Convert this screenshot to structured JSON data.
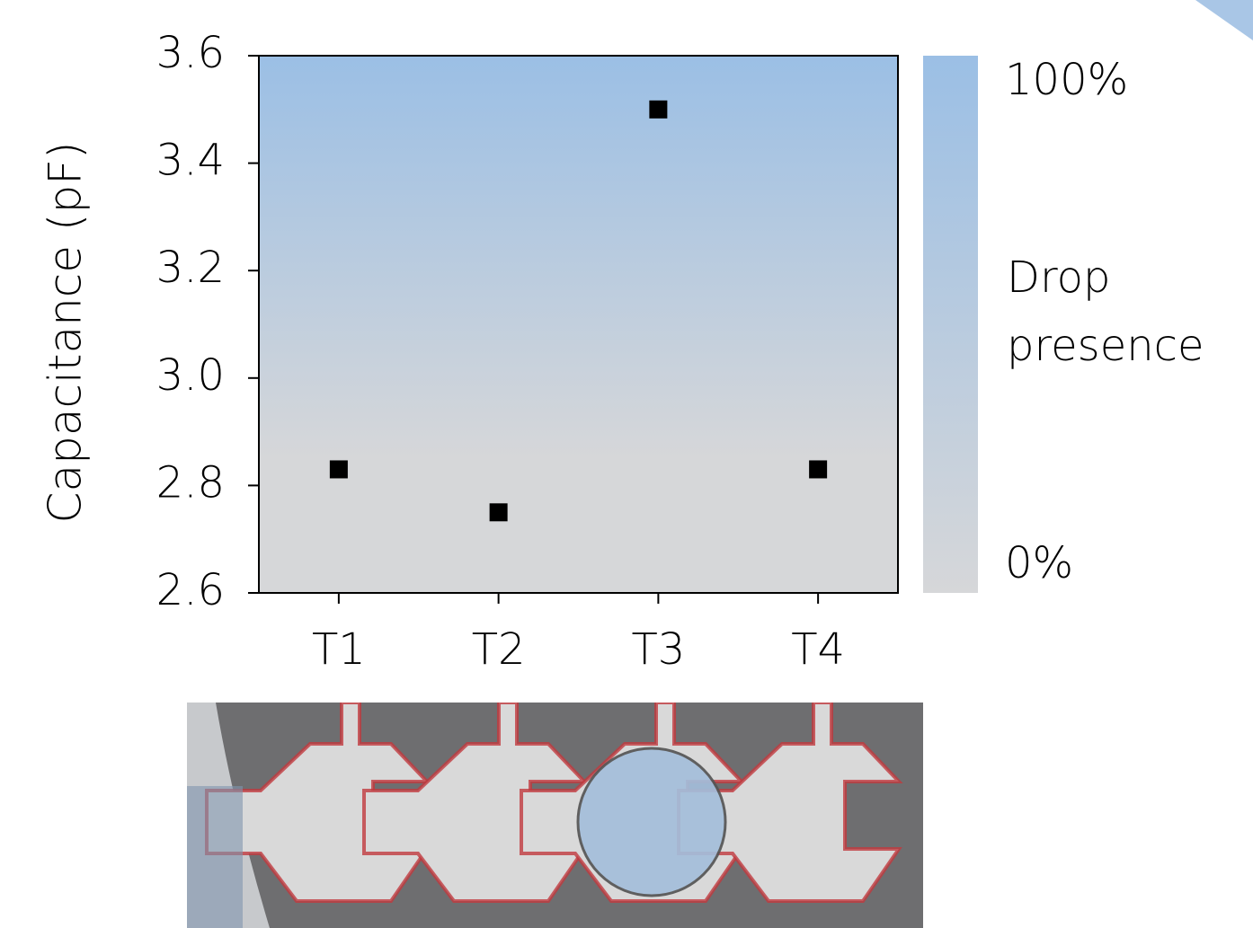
{
  "chart_data": {
    "type": "scatter",
    "y_label": "Capacitance (pF)",
    "categories": [
      "T1",
      "T2",
      "T3",
      "T4"
    ],
    "values": [
      2.83,
      2.75,
      3.5,
      2.83
    ],
    "color": "#000000",
    "ylim": [
      2.6,
      3.6
    ],
    "yticks": [
      2.6,
      2.8,
      {
        "value": 3,
        "label": "3.0"
      },
      3.2,
      3.4,
      3.6
    ],
    "colorbar": {
      "range": [
        0,
        100
      ],
      "ticks": [
        {
          "value": 0,
          "label": "0%"
        },
        {
          "value": 100,
          "label": "100%"
        }
      ],
      "label_lines": [
        "Drop",
        "presence"
      ],
      "colors": [
        "#d6d7d9",
        "#9bbfe5"
      ]
    }
  }
}
